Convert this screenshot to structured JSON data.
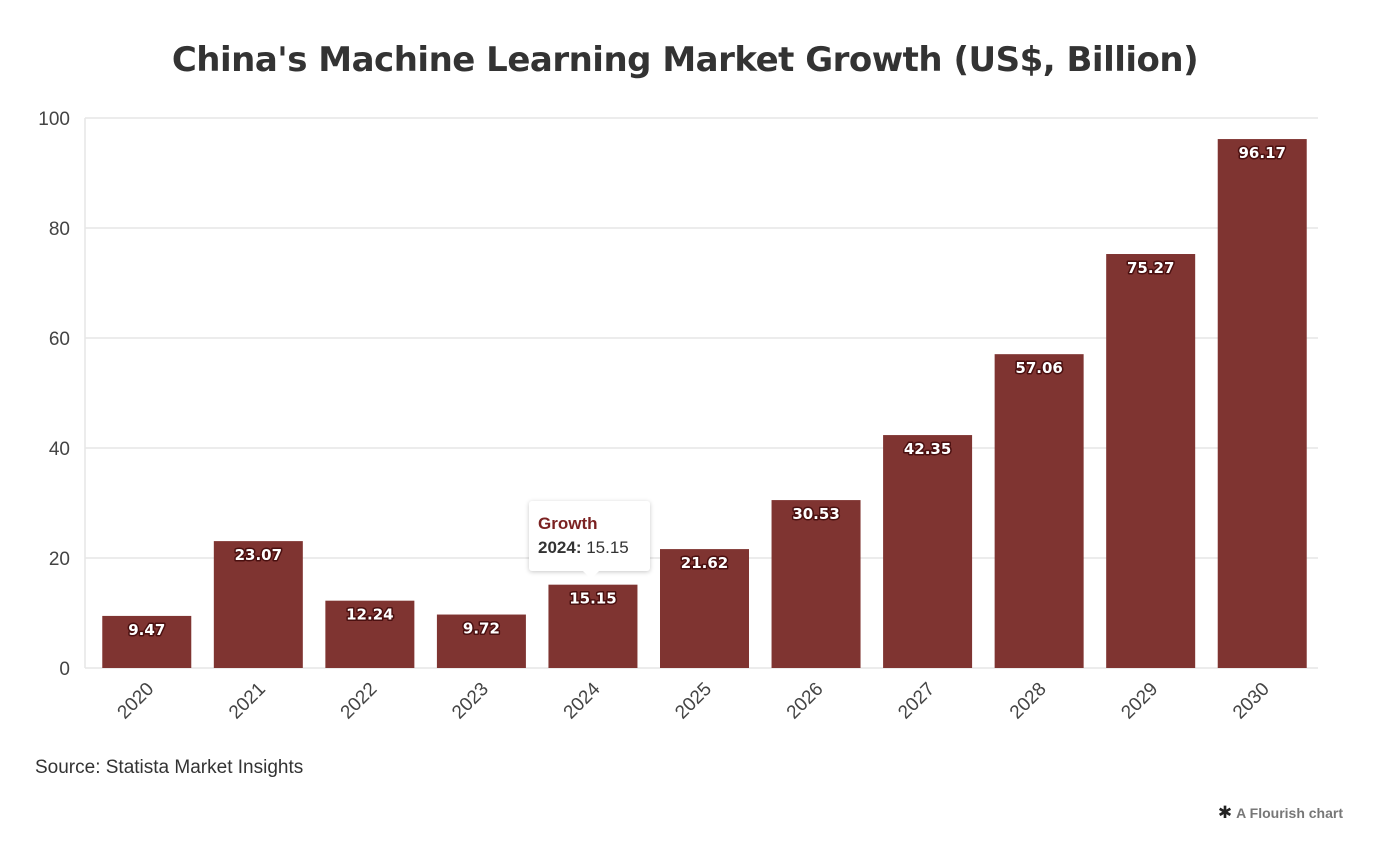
{
  "title": "China's Machine Learning Market Growth (US$, Billion)",
  "source": "Source: Statista Market Insights",
  "credit": {
    "icon": "flourish-star-icon",
    "label": "A Flourish chart"
  },
  "tooltip": {
    "series": "Growth",
    "category": "2024:",
    "value": "15.15"
  },
  "colors": {
    "bar": "#7f3431",
    "grid": "#e6e6e6",
    "axis_text": "#444444",
    "tooltip_series": "#7b2222"
  },
  "chart_data": {
    "type": "bar",
    "categories": [
      "2020",
      "2021",
      "2022",
      "2023",
      "2024",
      "2025",
      "2026",
      "2027",
      "2028",
      "2029",
      "2030"
    ],
    "series": [
      {
        "name": "Growth",
        "values": [
          9.47,
          23.07,
          12.24,
          9.72,
          15.15,
          21.62,
          30.53,
          42.35,
          57.06,
          75.27,
          96.17
        ]
      }
    ],
    "data_labels": [
      "9.47",
      "23.07",
      "12.24",
      "9.72",
      "15.15",
      "21.62",
      "30.53",
      "42.35",
      "57.06",
      "75.27",
      "96.17"
    ],
    "title": "China's Machine Learning Market Growth (US$, Billion)",
    "xlabel": "",
    "ylabel": "",
    "ylim": [
      0,
      100
    ],
    "yticks": [
      "0",
      "20",
      "40",
      "60",
      "80",
      "100"
    ],
    "grid": true,
    "legend": "none"
  }
}
